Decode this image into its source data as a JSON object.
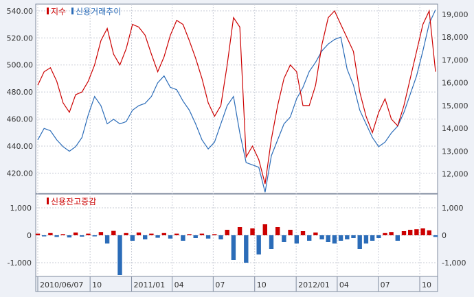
{
  "chart_data": [
    {
      "type": "line",
      "legend": [
        {
          "name": "지수",
          "color": "#cc0000",
          "axis": "left"
        },
        {
          "name": "신용거래추이",
          "color": "#2b6cb8",
          "axis": "right"
        }
      ],
      "left_axis": {
        "range": [
          405,
          545
        ],
        "ticks": [
          420,
          440,
          460,
          480,
          500,
          520,
          540
        ],
        "tick_labels": [
          "420.00",
          "440.00",
          "460.00",
          "480.00",
          "500.00",
          "520.00",
          "540.00"
        ]
      },
      "right_axis": {
        "range": [
          11150,
          19450
        ],
        "ticks": [
          12000,
          13000,
          14000,
          15000,
          16000,
          17000,
          18000,
          19000
        ],
        "tick_labels": [
          "12,000",
          "13,000",
          "14,000",
          "15,000",
          "16,000",
          "17,000",
          "18,000",
          "19,000"
        ]
      },
      "x_dates": [
        "2010-06-07",
        "2010-06-21",
        "2010-07-05",
        "2010-07-19",
        "2010-08-02",
        "2010-08-16",
        "2010-08-30",
        "2010-09-13",
        "2010-09-27",
        "2010-10-11",
        "2010-10-25",
        "2010-11-08",
        "2010-11-22",
        "2010-12-06",
        "2010-12-20",
        "2011-01-03",
        "2011-01-17",
        "2011-01-31",
        "2011-02-14",
        "2011-02-28",
        "2011-03-14",
        "2011-03-28",
        "2011-04-11",
        "2011-04-25",
        "2011-05-09",
        "2011-05-23",
        "2011-06-06",
        "2011-06-20",
        "2011-07-04",
        "2011-07-18",
        "2011-08-01",
        "2011-08-15",
        "2011-08-29",
        "2011-09-12",
        "2011-09-26",
        "2011-10-10",
        "2011-10-24",
        "2011-11-07",
        "2011-11-21",
        "2011-12-05",
        "2011-12-19",
        "2012-01-02",
        "2012-01-16",
        "2012-01-30",
        "2012-02-13",
        "2012-02-27",
        "2012-03-12",
        "2012-03-26",
        "2012-04-09",
        "2012-04-23",
        "2012-05-07",
        "2012-05-21",
        "2012-06-04",
        "2012-06-18",
        "2012-07-02",
        "2012-07-16",
        "2012-07-30",
        "2012-08-13",
        "2012-08-27",
        "2012-09-10",
        "2012-09-24",
        "2012-10-08",
        "2012-10-22",
        "2012-11-05"
      ],
      "series": [
        {
          "name": "지수",
          "values": [
            485,
            495,
            498,
            488,
            472,
            465,
            478,
            480,
            488,
            500,
            518,
            527,
            508,
            500,
            512,
            530,
            528,
            522,
            508,
            495,
            506,
            522,
            533,
            530,
            518,
            505,
            490,
            472,
            462,
            470,
            500,
            535,
            528,
            432,
            440,
            430,
            412,
            445,
            470,
            490,
            500,
            495,
            470,
            470,
            485,
            515,
            535,
            540,
            530,
            520,
            510,
            480,
            462,
            450,
            465,
            475,
            460,
            455,
            470,
            490,
            510,
            530,
            540,
            495
          ]
        },
        {
          "name": "신용거래추이",
          "values": [
            13500,
            14000,
            13900,
            13500,
            13200,
            13000,
            13200,
            13600,
            14600,
            15400,
            15000,
            14200,
            14400,
            14200,
            14300,
            14800,
            15000,
            15100,
            15400,
            16000,
            16300,
            15800,
            15700,
            15200,
            14800,
            14200,
            13500,
            13100,
            13400,
            14200,
            15000,
            15400,
            13800,
            12500,
            12400,
            12300,
            11200,
            12800,
            13500,
            14200,
            14500,
            15300,
            15800,
            16500,
            16900,
            17400,
            17700,
            17900,
            18000,
            16600,
            15900,
            14800,
            14200,
            13600,
            13200,
            13400,
            13800,
            14100,
            14700,
            15500,
            16300,
            17400,
            18600,
            19200
          ]
        }
      ]
    },
    {
      "type": "bar",
      "legend": [
        {
          "name": "신용잔고증감",
          "color": "#cc0000"
        }
      ],
      "positive_color": "#cc0000",
      "negative_color": "#2b6cb8",
      "left_axis": {
        "range": [
          -1500,
          1500
        ],
        "ticks": [
          -1000,
          0,
          1000
        ],
        "tick_labels": [
          "-1,000",
          "0",
          "1,000"
        ]
      },
      "right_axis": {
        "range": [
          -1500,
          1500
        ],
        "ticks": [
          -1000,
          0,
          1000
        ],
        "tick_labels": [
          "-1,000",
          "0",
          "1,000"
        ]
      },
      "values": [
        60,
        -40,
        80,
        -60,
        40,
        -80,
        100,
        -50,
        60,
        -40,
        120,
        -300,
        160,
        -1450,
        80,
        -200,
        100,
        -150,
        60,
        -90,
        80,
        -120,
        60,
        -200,
        40,
        -100,
        60,
        -120,
        40,
        -150,
        200,
        -900,
        300,
        -1000,
        250,
        -700,
        400,
        -500,
        300,
        -250,
        200,
        -300,
        150,
        -200,
        100,
        -150,
        -250,
        -300,
        -200,
        -150,
        -100,
        -500,
        -300,
        -200,
        -100,
        80,
        120,
        -200,
        150,
        200,
        220,
        250,
        180,
        -60
      ]
    }
  ],
  "x_axis": {
    "tick_labels": [
      "2010/06/07",
      "10",
      "2011/01",
      "04",
      "07",
      "10",
      "2012/01",
      "04",
      "07",
      "10"
    ]
  }
}
